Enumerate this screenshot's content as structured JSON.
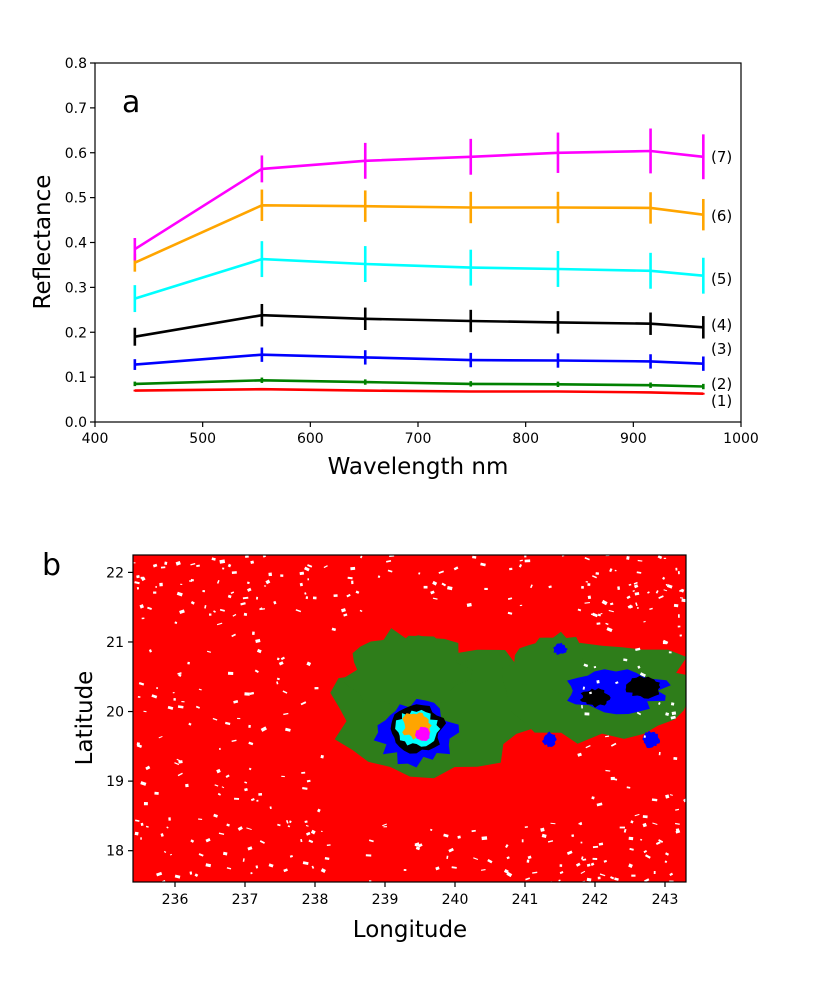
{
  "chart_data": [
    {
      "type": "line",
      "panel_label": "a",
      "xlabel": "Wavelength nm",
      "ylabel": "Reflectance",
      "xlim": [
        400,
        1000
      ],
      "ylim": [
        0.0,
        0.8
      ],
      "xticks": [
        "400",
        "500",
        "600",
        "700",
        "800",
        "900",
        "1000"
      ],
      "yticks": [
        "0.0",
        "0.1",
        "0.2",
        "0.3",
        "0.4",
        "0.5",
        "0.6",
        "0.7",
        "0.8"
      ],
      "grid": false,
      "x": [
        437,
        555,
        651,
        749,
        830,
        916,
        965
      ],
      "series": [
        {
          "name": "(1)",
          "color": "#ff0000",
          "values": [
            0.07,
            0.073,
            0.07,
            0.068,
            0.068,
            0.066,
            0.063
          ],
          "errors": [
            0.002,
            0.002,
            0.002,
            0.002,
            0.002,
            0.002,
            0.002
          ]
        },
        {
          "name": "(2)",
          "color": "#008000",
          "values": [
            0.085,
            0.093,
            0.089,
            0.085,
            0.084,
            0.082,
            0.079
          ],
          "errors": [
            0.005,
            0.006,
            0.006,
            0.006,
            0.006,
            0.006,
            0.006
          ]
        },
        {
          "name": "(3)",
          "color": "#0000ff",
          "values": [
            0.128,
            0.15,
            0.144,
            0.138,
            0.137,
            0.135,
            0.13
          ],
          "errors": [
            0.012,
            0.016,
            0.016,
            0.016,
            0.016,
            0.016,
            0.016
          ]
        },
        {
          "name": "(4)",
          "color": "#000000",
          "values": [
            0.19,
            0.238,
            0.23,
            0.225,
            0.222,
            0.219,
            0.211
          ],
          "errors": [
            0.02,
            0.025,
            0.025,
            0.025,
            0.025,
            0.025,
            0.025
          ]
        },
        {
          "name": "(5)",
          "color": "#00ffff",
          "values": [
            0.275,
            0.363,
            0.352,
            0.344,
            0.341,
            0.337,
            0.326
          ],
          "errors": [
            0.03,
            0.04,
            0.04,
            0.04,
            0.04,
            0.04,
            0.04
          ]
        },
        {
          "name": "(6)",
          "color": "#ffa500",
          "values": [
            0.355,
            0.483,
            0.481,
            0.478,
            0.478,
            0.477,
            0.462
          ],
          "errors": [
            0.02,
            0.035,
            0.035,
            0.035,
            0.035,
            0.035,
            0.035
          ]
        },
        {
          "name": "(7)",
          "color": "#ff00ff",
          "values": [
            0.385,
            0.564,
            0.582,
            0.591,
            0.6,
            0.604,
            0.591
          ],
          "errors": [
            0.025,
            0.03,
            0.04,
            0.04,
            0.045,
            0.05,
            0.05
          ]
        }
      ]
    },
    {
      "type": "heatmap",
      "panel_label": "b",
      "xlabel": "Longitude",
      "ylabel": "Latitude",
      "xlim": [
        235.4,
        243.3
      ],
      "ylim": [
        17.55,
        22.25
      ],
      "xticks": [
        "236",
        "237",
        "238",
        "239",
        "240",
        "241",
        "242",
        "243"
      ],
      "yticks": [
        "18",
        "19",
        "20",
        "21",
        "22"
      ],
      "classes": [
        {
          "id": "1",
          "color": "#ff0000"
        },
        {
          "id": "2",
          "color": "#2e7d1a"
        },
        {
          "id": "3",
          "color": "#0000ff"
        },
        {
          "id": "4",
          "color": "#000000"
        },
        {
          "id": "5",
          "color": "#00ffff"
        },
        {
          "id": "6",
          "color": "#ffa500"
        },
        {
          "id": "7",
          "color": "#ff00ff"
        }
      ],
      "regions": [
        {
          "class": "2",
          "lon": 239.7,
          "lat": 20.05,
          "rlon": 1.45,
          "rlat": 0.95
        },
        {
          "class": "2",
          "lon": 239.3,
          "lat": 20.6,
          "rlon": 0.85,
          "rlat": 0.55
        },
        {
          "class": "2",
          "lon": 242.1,
          "lat": 20.3,
          "rlon": 1.4,
          "rlat": 0.7
        },
        {
          "class": "2",
          "lon": 241.4,
          "lat": 20.7,
          "rlon": 0.5,
          "rlat": 0.45
        },
        {
          "class": "3",
          "lon": 239.45,
          "lat": 19.7,
          "rlon": 0.55,
          "rlat": 0.45
        },
        {
          "class": "3",
          "lon": 242.3,
          "lat": 20.3,
          "rlon": 0.7,
          "rlat": 0.3
        },
        {
          "class": "3",
          "lon": 242.8,
          "lat": 19.6,
          "rlon": 0.12,
          "rlat": 0.12
        },
        {
          "class": "3",
          "lon": 241.35,
          "lat": 19.6,
          "rlon": 0.1,
          "rlat": 0.1
        },
        {
          "class": "3",
          "lon": 241.5,
          "lat": 20.9,
          "rlon": 0.1,
          "rlat": 0.08
        },
        {
          "class": "4",
          "lon": 239.45,
          "lat": 19.75,
          "rlon": 0.38,
          "rlat": 0.32
        },
        {
          "class": "4",
          "lon": 242.7,
          "lat": 20.35,
          "rlon": 0.25,
          "rlat": 0.15
        },
        {
          "class": "4",
          "lon": 242.0,
          "lat": 20.2,
          "rlon": 0.2,
          "rlat": 0.13
        },
        {
          "class": "5",
          "lon": 239.45,
          "lat": 19.75,
          "rlon": 0.3,
          "rlat": 0.26
        },
        {
          "class": "6",
          "lon": 239.45,
          "lat": 19.8,
          "rlon": 0.2,
          "rlat": 0.2
        },
        {
          "class": "7",
          "lon": 239.55,
          "lat": 19.68,
          "rlon": 0.11,
          "rlat": 0.1
        }
      ]
    }
  ]
}
